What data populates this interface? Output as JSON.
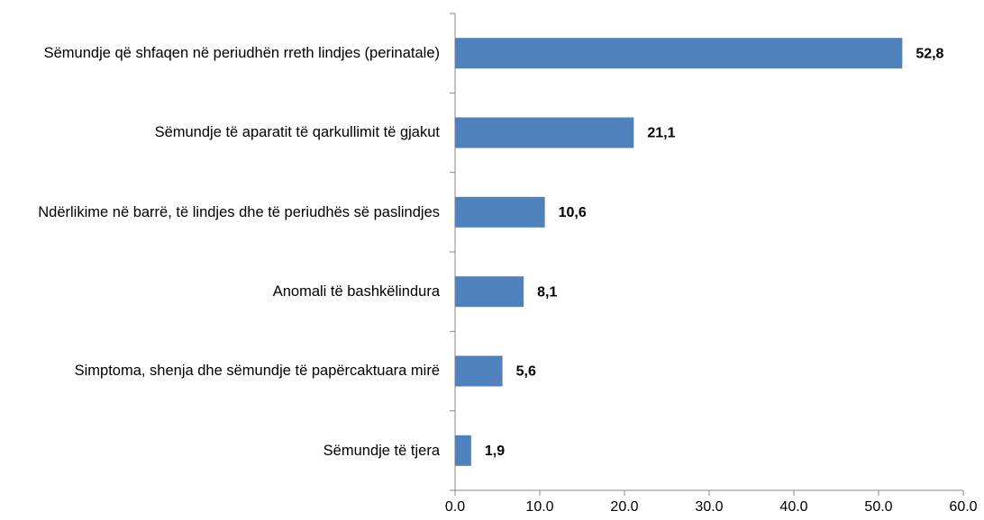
{
  "chart_data": {
    "type": "bar",
    "orientation": "horizontal",
    "categories": [
      "Sëmundje që shfaqen në periudhën rreth lindjes (perinatale)",
      "Sëmundje të aparatit të qarkullimit të gjakut",
      "Ndërlikime në barrë, të lindjes dhe të periudhës së paslindjes",
      "Anomali të bashkëlindura",
      "Simptoma, shenja dhe sëmundje të papërcaktuara mirë",
      "Sëmundje të tjera"
    ],
    "values": [
      52.8,
      21.1,
      10.6,
      8.1,
      5.6,
      1.9
    ],
    "value_labels": [
      "52,8",
      "21,1",
      "10,6",
      "8,1",
      "5,6",
      "1,9"
    ],
    "color": "#4f81bd",
    "xlim": [
      0,
      60
    ],
    "xticks": [
      {
        "value": 0,
        "label": "0.0"
      },
      {
        "value": 10,
        "label": "10.0"
      },
      {
        "value": 20,
        "label": "20.0"
      },
      {
        "value": 30,
        "label": "30.0"
      },
      {
        "value": 40,
        "label": "40.0"
      },
      {
        "value": 50,
        "label": "50.0"
      },
      {
        "value": 60,
        "label": "60.0"
      }
    ]
  }
}
